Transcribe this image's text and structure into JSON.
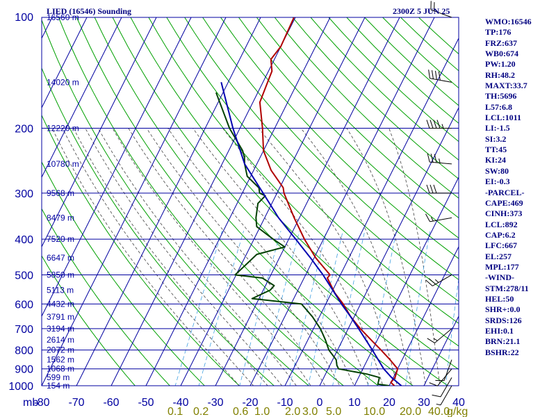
{
  "header": {
    "title": "LIED (16546) Sounding",
    "timestamp": "2300Z  5 JUN 25"
  },
  "indices": [
    "WMO:16546",
    "TP:176",
    "FRZ:637",
    "WB0:674",
    "PW:1.20",
    "RH:48.2",
    "MAXT:33.7",
    "TH:5696",
    "L57:6.8",
    "LCL:1011",
    "LI:-1.5",
    "SI:3.2",
    "TT:45",
    "KI:24",
    "SW:80",
    "EI:-0.3",
    "-PARCEL-",
    "CAPE:469",
    "CINH:373",
    "LCL:892",
    "CAP:6.2",
    "LFC:667",
    "EL:257",
    "MPL:177",
    "-WIND-",
    "STM:278/11",
    "HEL:50",
    "SHR+:0.0",
    "SRDS:126",
    "EHI:0.1",
    "BRN:21.1",
    "BSHR:22"
  ],
  "colors": {
    "grid": "#0000a0",
    "dry_adiabat": "#00a000",
    "moist_adiabat": "#404040",
    "mixing_ratio": "#40a0e0",
    "temperature": "#b00000",
    "dewpoint": "#004000",
    "parcel": "#0000b0",
    "axis_label": "#0000a0",
    "mix_label": "#808000"
  },
  "chart_data": {
    "type": "line",
    "chart_kind": "Skew-T log-P sounding",
    "pressure_axis": {
      "unit_label": "mb",
      "scale": "log",
      "range": [
        1000,
        100
      ],
      "ticks": [
        100,
        200,
        300,
        400,
        500,
        600,
        700,
        800,
        900,
        1000
      ]
    },
    "temperature_axis": {
      "range": [
        -80,
        40
      ],
      "ticks": [
        -80,
        -70,
        -60,
        -50,
        -40,
        -30,
        -20,
        -10,
        0,
        10,
        20,
        30,
        40
      ]
    },
    "mixing_ratio_axis": {
      "unit_label": "g/kg",
      "ticks": [
        "0.1",
        "0.2",
        "0.6",
        "1.0",
        "2.0",
        "3.0",
        "5.0",
        "10.0",
        "20.0",
        "40.0"
      ]
    },
    "height_labels": [
      {
        "p": 100,
        "label": "16560 m"
      },
      {
        "p": 150,
        "label": "14020 m"
      },
      {
        "p": 200,
        "label": "12220 m"
      },
      {
        "p": 250,
        "label": "10780 m"
      },
      {
        "p": 300,
        "label": "9568 m"
      },
      {
        "p": 350,
        "label": "8479 m"
      },
      {
        "p": 400,
        "label": "7520 m"
      },
      {
        "p": 450,
        "label": "6647 m"
      },
      {
        "p": 500,
        "label": "5850 m"
      },
      {
        "p": 550,
        "label": "5113 m"
      },
      {
        "p": 600,
        "label": "4432 m"
      },
      {
        "p": 650,
        "label": "3791 m"
      },
      {
        "p": 700,
        "label": "3194 m"
      },
      {
        "p": 750,
        "label": "2614 m"
      },
      {
        "p": 800,
        "label": "2072 m"
      },
      {
        "p": 850,
        "label": "1562 m"
      },
      {
        "p": 900,
        "label": "1068 m"
      },
      {
        "p": 950,
        "label": "599 m"
      },
      {
        "p": 1000,
        "label": "154 m"
      }
    ],
    "series": [
      {
        "key": "temperature",
        "points": [
          [
            100,
            -60.4
          ],
          [
            120,
            -60
          ],
          [
            130,
            -61
          ],
          [
            140,
            -59
          ],
          [
            155,
            -58.5
          ],
          [
            170,
            -58
          ],
          [
            200,
            -53.5
          ],
          [
            230,
            -50
          ],
          [
            260,
            -45
          ],
          [
            290,
            -39
          ],
          [
            300,
            -38
          ],
          [
            350,
            -31.5
          ],
          [
            400,
            -25.5
          ],
          [
            450,
            -19.5
          ],
          [
            500,
            -13
          ],
          [
            510,
            -13.3
          ],
          [
            560,
            -9
          ],
          [
            600,
            -5
          ],
          [
            650,
            -1
          ],
          [
            700,
            3.5
          ],
          [
            760,
            9
          ],
          [
            800,
            12.5
          ],
          [
            850,
            16.5
          ],
          [
            900,
            20
          ],
          [
            950,
            20.5
          ],
          [
            980,
            20
          ],
          [
            1000,
            21.5
          ]
        ]
      },
      {
        "key": "dewpoint",
        "points": [
          [
            160,
            -72
          ],
          [
            200,
            -63
          ],
          [
            230,
            -56
          ],
          [
            240,
            -54.5
          ],
          [
            250,
            -53.5
          ],
          [
            270,
            -51
          ],
          [
            290,
            -46
          ],
          [
            300,
            -45
          ],
          [
            305,
            -43
          ],
          [
            320,
            -44
          ],
          [
            350,
            -42.5
          ],
          [
            370,
            -41
          ],
          [
            400,
            -34.5
          ],
          [
            420,
            -30
          ],
          [
            440,
            -37
          ],
          [
            500,
            -40.3
          ],
          [
            510,
            -32
          ],
          [
            535,
            -27.5
          ],
          [
            550,
            -28
          ],
          [
            580,
            -32
          ],
          [
            600,
            -17
          ],
          [
            650,
            -12
          ],
          [
            700,
            -8
          ],
          [
            750,
            -5
          ],
          [
            800,
            -2.5
          ],
          [
            850,
            1
          ],
          [
            880,
            2
          ],
          [
            900,
            3
          ],
          [
            930,
            12
          ],
          [
            950,
            16
          ],
          [
            990,
            16.5
          ],
          [
            1000,
            20
          ]
        ]
      },
      {
        "key": "parcel",
        "points": [
          [
            150,
            -72
          ],
          [
            200,
            -62
          ],
          [
            250,
            -53.5
          ],
          [
            300,
            -44
          ],
          [
            350,
            -36
          ],
          [
            400,
            -28
          ],
          [
            450,
            -21
          ],
          [
            500,
            -15
          ],
          [
            550,
            -10
          ],
          [
            600,
            -5.5
          ],
          [
            650,
            -1
          ],
          [
            700,
            3
          ],
          [
            800,
            10
          ],
          [
            900,
            16
          ],
          [
            950,
            19.5
          ],
          [
            1000,
            23.5
          ]
        ]
      }
    ],
    "wind_barbs": [
      {
        "p": 100,
        "dir": 290,
        "spd": 20
      },
      {
        "p": 150,
        "dir": 280,
        "spd": 40
      },
      {
        "p": 200,
        "dir": 270,
        "spd": 45
      },
      {
        "p": 250,
        "dir": 275,
        "spd": 35
      },
      {
        "p": 300,
        "dir": 270,
        "spd": 30
      },
      {
        "p": 350,
        "dir": 260,
        "spd": 15
      },
      {
        "p": 500,
        "dir": 240,
        "spd": 25
      },
      {
        "p": 700,
        "dir": 230,
        "spd": 15
      },
      {
        "p": 850,
        "dir": 200,
        "spd": 10
      },
      {
        "p": 900,
        "dir": 220,
        "spd": 10
      },
      {
        "p": 950,
        "dir": 210,
        "spd": 10
      },
      {
        "p": 1000,
        "dir": 210,
        "spd": 5
      }
    ]
  }
}
